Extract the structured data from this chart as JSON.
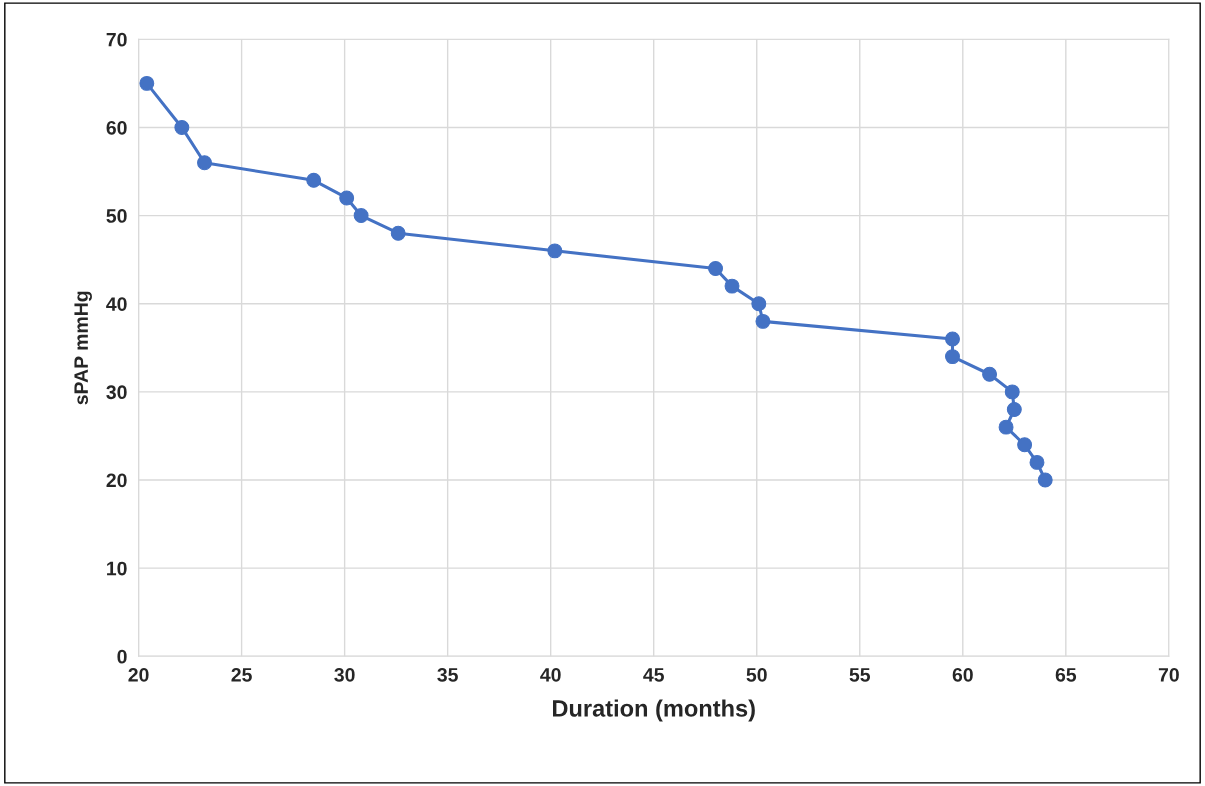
{
  "chart_data": {
    "type": "line",
    "xlabel": "Duration (months)",
    "ylabel": "sPAP mmHg",
    "x": [
      20.4,
      22.1,
      23.2,
      28.5,
      30.1,
      30.8,
      32.6,
      40.2,
      48.0,
      48.8,
      50.1,
      50.3,
      59.5,
      59.5,
      61.3,
      62.4,
      62.5,
      62.1,
      63.0,
      63.6,
      64.0
    ],
    "series": [
      {
        "color": "#4472c4",
        "values": [
          65,
          60,
          56,
          54,
          52,
          50,
          48,
          46,
          44,
          42,
          40,
          38,
          36,
          34,
          32,
          30,
          28,
          26,
          24,
          22,
          20
        ]
      }
    ],
    "xlim": [
      20,
      70
    ],
    "xticks": [
      20,
      25,
      30,
      35,
      40,
      45,
      50,
      55,
      60,
      65,
      70
    ],
    "ylim": [
      0,
      70
    ],
    "yticks": [
      0,
      10,
      20,
      30,
      40,
      50,
      60,
      70
    ],
    "grid": true,
    "marker": "circle",
    "line_style": "solid",
    "legend": false
  }
}
